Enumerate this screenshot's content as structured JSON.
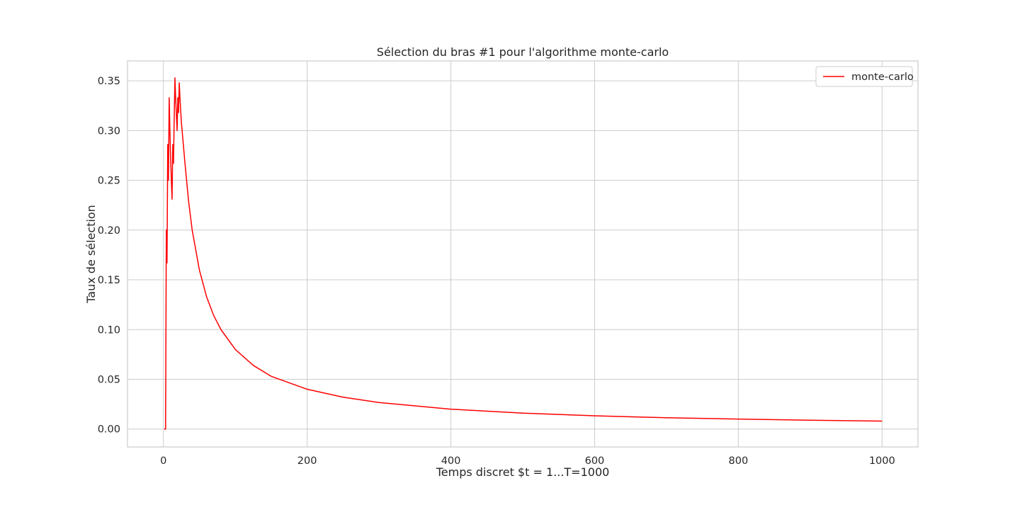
{
  "chart_data": {
    "type": "line",
    "title": "Sélection du bras #1 pour l'algorithme monte-carlo",
    "xlabel": "Temps discret $t = 1...T=1000",
    "ylabel": "Taux de sélection",
    "xlim": [
      -50,
      1050
    ],
    "ylim": [
      -0.018,
      0.37
    ],
    "xticks": [
      0,
      200,
      400,
      600,
      800,
      1000
    ],
    "xtick_labels": [
      "0",
      "200",
      "400",
      "600",
      "800",
      "1000"
    ],
    "yticks": [
      0.0,
      0.05,
      0.1,
      0.15,
      0.2,
      0.25,
      0.3,
      0.35
    ],
    "ytick_labels": [
      "0.00",
      "0.05",
      "0.10",
      "0.15",
      "0.20",
      "0.25",
      "0.30",
      "0.35"
    ],
    "grid": true,
    "legend_position": "top-right",
    "series": [
      {
        "name": "monte-carlo",
        "color": "#ff0000",
        "x": [
          1,
          2,
          3,
          4,
          5,
          6,
          7,
          8,
          9,
          10,
          11,
          12,
          13,
          14,
          15,
          16,
          17,
          18,
          19,
          20,
          21,
          22,
          23,
          24,
          25,
          30,
          35,
          40,
          50,
          60,
          70,
          80,
          100,
          125,
          150,
          200,
          250,
          300,
          400,
          500,
          600,
          700,
          800,
          900,
          1000
        ],
        "y": [
          0.0,
          0.0,
          0.0,
          0.2,
          0.167,
          0.286,
          0.25,
          0.333,
          0.3,
          0.273,
          0.25,
          0.231,
          0.286,
          0.267,
          0.313,
          0.353,
          0.333,
          0.316,
          0.3,
          0.333,
          0.318,
          0.348,
          0.333,
          0.32,
          0.308,
          0.267,
          0.229,
          0.2,
          0.16,
          0.133,
          0.114,
          0.1,
          0.08,
          0.064,
          0.053,
          0.04,
          0.032,
          0.0267,
          0.02,
          0.016,
          0.0133,
          0.0114,
          0.01,
          0.0089,
          0.008
        ]
      }
    ]
  }
}
